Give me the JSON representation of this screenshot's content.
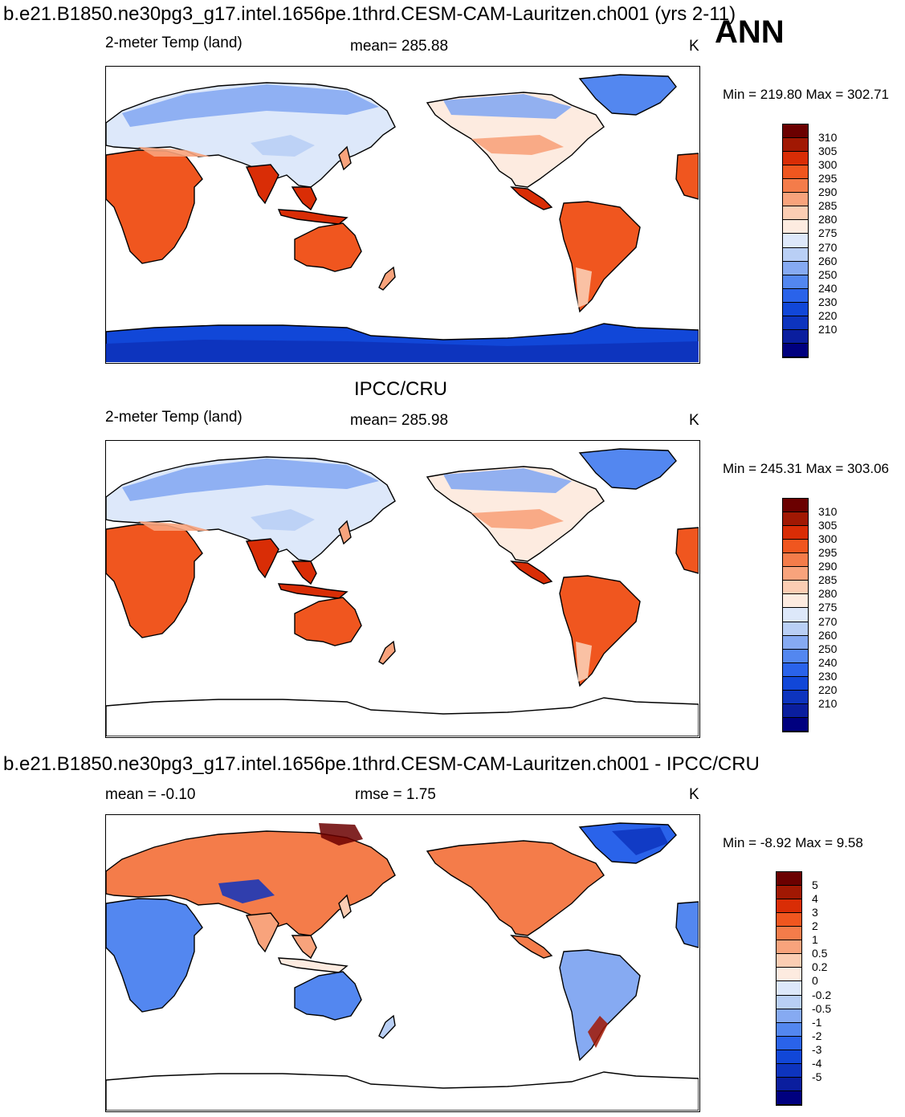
{
  "header": {
    "title": "b.e21.B1850.ne30pg3_g17.intel.1656pe.1thrd.CESM-CAM-Lauritzen.ch001 (yrs 2-11)",
    "season": "ANN"
  },
  "colors": {
    "temp_scale": [
      "#00007f",
      "#0a1e9e",
      "#0d34be",
      "#1147d8",
      "#2a63ea",
      "#5387f0",
      "#86aaf2",
      "#b9cff5",
      "#dde8fa",
      "#fdebe0",
      "#fbcdb3",
      "#f8a37c",
      "#f47c4a",
      "#f0561f",
      "#d92d06",
      "#a11803",
      "#6b0000"
    ],
    "diff_scale": [
      "#00007f",
      "#0a1e9e",
      "#0d34be",
      "#1147d8",
      "#2a63ea",
      "#5387f0",
      "#86aaf2",
      "#b9cff5",
      "#dde8fa",
      "#fdebe0",
      "#fbcdb3",
      "#f8a37c",
      "#f47c4a",
      "#f0561f",
      "#d92d06",
      "#a11803",
      "#6b0000"
    ]
  },
  "chart_data": [
    {
      "type": "heatmap",
      "title": "2-meter Temp (land)",
      "mean_label": "mean= 285.88",
      "units": "K",
      "minmax": "Min = 219.80 Max = 302.71",
      "colorbar_levels": [
        "310",
        "305",
        "300",
        "295",
        "290",
        "285",
        "280",
        "275",
        "270",
        "260",
        "250",
        "240",
        "230",
        "220",
        "210"
      ],
      "field": "model"
    },
    {
      "type": "heatmap",
      "section_title": "IPCC/CRU",
      "title": "2-meter Temp (land)",
      "mean_label": "mean= 285.98",
      "units": "K",
      "minmax": "Min = 245.31 Max = 303.06",
      "colorbar_levels": [
        "310",
        "305",
        "300",
        "295",
        "290",
        "285",
        "280",
        "275",
        "270",
        "260",
        "250",
        "240",
        "230",
        "220",
        "210"
      ],
      "field": "obs"
    },
    {
      "type": "heatmap",
      "section_title": "b.e21.B1850.ne30pg3_g17.intel.1656pe.1thrd.CESM-CAM-Lauritzen.ch001 - IPCC/CRU",
      "mean_label": "mean =  -0.10",
      "rmse_label": "rmse =    1.75",
      "units": "K",
      "minmax": "Min =  -8.92 Max =   9.58",
      "colorbar_levels": [
        "5",
        "4",
        "3",
        "2",
        "1",
        "0.5",
        "0.2",
        "0",
        "-0.2",
        "-0.5",
        "-1",
        "-2",
        "-3",
        "-4",
        "-5"
      ],
      "field": "diff"
    }
  ]
}
